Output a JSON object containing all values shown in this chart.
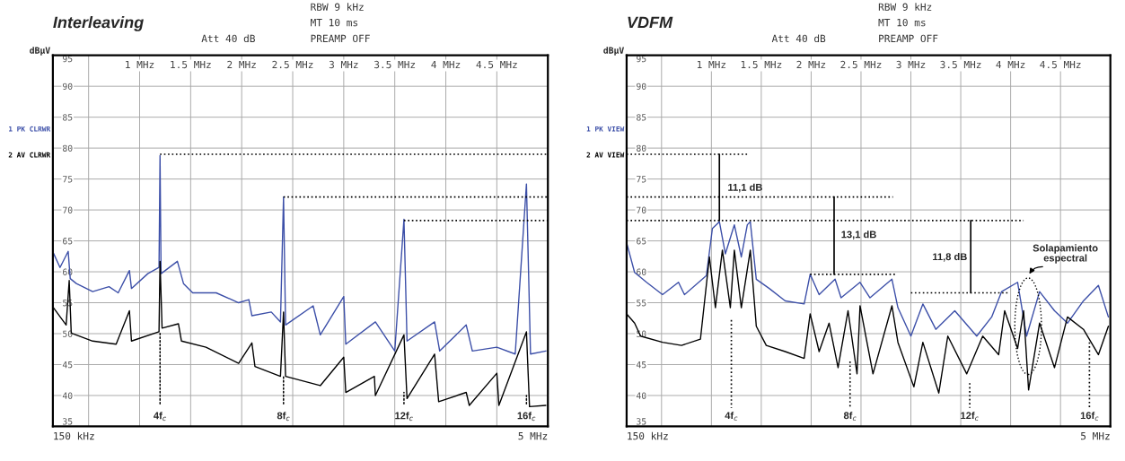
{
  "chart_data": [
    {
      "type": "line",
      "title": "Interleaving",
      "ylabel": "dBµV",
      "xlim": [
        0.15,
        5
      ],
      "xticks": [
        {
          "value": 0.5,
          "label": null
        },
        {
          "value": 1,
          "label": "1 MHz"
        },
        {
          "value": 1.5,
          "label": "1.5 MHz"
        },
        {
          "value": 2,
          "label": "2 MHz"
        },
        {
          "value": 2.5,
          "label": "2.5 MHz"
        },
        {
          "value": 3,
          "label": "3 MHz"
        },
        {
          "value": 3.5,
          "label": "3.5 MHz"
        },
        {
          "value": 4,
          "label": "4 MHz"
        },
        {
          "value": 4.5,
          "label": "4.5 MHz"
        }
      ],
      "ylim": [
        35,
        95
      ],
      "yticks": [
        35,
        40,
        45,
        50,
        55,
        60,
        65,
        70,
        75,
        80,
        85,
        90,
        95
      ],
      "grid": true,
      "legend": "left",
      "series": [
        {
          "name": "1 PK CLRWR",
          "color": "#3c4fa8",
          "line_style": "solid",
          "x": [
            0.156,
            0.22,
            0.3,
            0.32,
            0.38,
            0.54,
            0.7,
            0.79,
            0.9,
            0.92,
            1.08,
            1.19,
            1.2,
            1.21,
            1.37,
            1.43,
            1.52,
            1.75,
            1.97,
            2.07,
            2.1,
            2.29,
            2.38,
            2.41,
            2.43,
            2.7,
            2.77,
            3.0,
            3.02,
            3.31,
            3.5,
            3.59,
            3.62,
            3.89,
            3.94,
            4.2,
            4.26,
            4.5,
            4.68,
            4.79,
            4.83,
            4.98
          ],
          "values": [
            63.0,
            60.7,
            63.3,
            58.9,
            58.1,
            56.8,
            57.6,
            56.6,
            60.2,
            57.3,
            59.7,
            60.7,
            78.8,
            59.7,
            61.7,
            58.1,
            56.6,
            56.6,
            55.0,
            55.5,
            52.9,
            53.5,
            51.9,
            72.1,
            51.4,
            54.5,
            49.8,
            56.0,
            48.3,
            51.9,
            47.2,
            68.5,
            48.8,
            51.9,
            47.2,
            51.4,
            47.2,
            47.8,
            46.7,
            74.2,
            46.7,
            47.2
          ]
        },
        {
          "name": "2 AV CLRWR",
          "color": "#000000",
          "line_style": "solid",
          "x": [
            0.156,
            0.28,
            0.31,
            0.33,
            0.54,
            0.77,
            0.9,
            0.92,
            1.19,
            1.2,
            1.22,
            1.38,
            1.41,
            1.65,
            1.97,
            2.1,
            2.13,
            2.38,
            2.41,
            2.43,
            2.77,
            3.0,
            3.02,
            3.3,
            3.31,
            3.59,
            3.62,
            3.89,
            3.93,
            4.2,
            4.23,
            4.5,
            4.52,
            4.79,
            4.82,
            4.98
          ],
          "values": [
            54.2,
            51.4,
            58.6,
            50.1,
            48.8,
            48.3,
            53.7,
            48.8,
            50.3,
            61.7,
            50.9,
            51.6,
            48.8,
            47.8,
            45.2,
            48.5,
            44.7,
            43.1,
            53.5,
            43.1,
            41.6,
            46.2,
            40.5,
            43.1,
            40.0,
            49.8,
            39.5,
            46.7,
            39.0,
            40.5,
            38.4,
            43.6,
            38.4,
            50.3,
            38.2,
            38.4
          ]
        },
        {
          "color": "#000000",
          "line_style": "dotted",
          "x": [
            1.2,
            5
          ],
          "values": [
            79.0,
            79.0
          ]
        },
        {
          "color": "#000000",
          "line_style": "dotted",
          "x": [
            2.41,
            5
          ],
          "values": [
            72.1,
            72.1
          ]
        },
        {
          "color": "#000000",
          "line_style": "dotted",
          "x": [
            3.59,
            5
          ],
          "values": [
            68.3,
            68.3
          ]
        }
      ],
      "annotations": [
        "Att 40 dB",
        "RBW 9 kHz",
        "MT 10 ms",
        "PREAMP OFF",
        "150 kHz",
        "5 MHz",
        {
          "text": "4f$_{c}$",
          "x": 1.2,
          "y": 50.3
        },
        {
          "text": "8f$_{c}$",
          "x": 2.41,
          "y": 43.1
        },
        {
          "text": "12f$_{c}$",
          "x": 3.59,
          "y": 40.5
        },
        {
          "text": "16f$_{c}$",
          "x": 4.79,
          "y": 40.0
        }
      ]
    },
    {
      "type": "line",
      "title": "VDFM",
      "ylabel": "dBµV",
      "xlim": [
        0.15,
        5
      ],
      "xticks": [
        {
          "value": 0.5,
          "label": null
        },
        {
          "value": 1,
          "label": "1 MHz"
        },
        {
          "value": 1.5,
          "label": "1.5 MHz"
        },
        {
          "value": 2,
          "label": "2 MHz"
        },
        {
          "value": 2.5,
          "label": "2.5 MHz"
        },
        {
          "value": 3,
          "label": "3 MHz"
        },
        {
          "value": 3.5,
          "label": "3.5 MHz"
        },
        {
          "value": 4,
          "label": "4 MHz"
        },
        {
          "value": 4.5,
          "label": "4.5 MHz"
        }
      ],
      "ylim": [
        35,
        95
      ],
      "yticks": [
        35,
        40,
        45,
        50,
        55,
        60,
        65,
        70,
        75,
        80,
        85,
        90,
        95
      ],
      "grid": true,
      "legend": "left",
      "series": [
        {
          "name": "1 PK VIEW",
          "color": "#3c4fa8",
          "line_style": "solid",
          "x": [
            0.15,
            0.23,
            0.35,
            0.51,
            0.67,
            0.73,
            0.95,
            1.01,
            1.08,
            1.14,
            1.23,
            1.3,
            1.36,
            1.39,
            1.45,
            1.58,
            1.74,
            1.93,
            1.99,
            2.08,
            2.24,
            2.3,
            2.49,
            2.59,
            2.81,
            2.87,
            3.0,
            3.12,
            3.25,
            3.44,
            3.66,
            3.81,
            3.91,
            4.07,
            4.16,
            4.29,
            4.44,
            4.57,
            4.73,
            4.88,
            4.98
          ],
          "values": [
            64.7,
            59.9,
            58.3,
            56.3,
            58.3,
            56.3,
            59.4,
            67.0,
            68.1,
            62.9,
            67.6,
            62.4,
            67.6,
            68.1,
            58.8,
            57.3,
            55.3,
            54.8,
            59.6,
            56.3,
            58.8,
            55.8,
            58.3,
            55.8,
            58.8,
            54.2,
            49.6,
            54.8,
            50.7,
            53.7,
            49.6,
            52.7,
            56.8,
            58.3,
            49.6,
            56.8,
            53.7,
            51.7,
            55.3,
            57.8,
            52.7
          ]
        },
        {
          "name": "2 AV VIEW",
          "color": "#000000",
          "line_style": "solid",
          "x": [
            0.15,
            0.23,
            0.29,
            0.51,
            0.7,
            0.89,
            0.98,
            1.04,
            1.11,
            1.19,
            1.23,
            1.3,
            1.39,
            1.45,
            1.55,
            1.74,
            1.93,
            1.99,
            2.08,
            2.18,
            2.27,
            2.37,
            2.46,
            2.49,
            2.62,
            2.81,
            2.87,
            3.03,
            3.12,
            3.28,
            3.37,
            3.56,
            3.72,
            3.88,
            3.94,
            4.07,
            4.13,
            4.18,
            4.29,
            4.44,
            4.57,
            4.73,
            4.88,
            4.98
          ],
          "values": [
            53.2,
            51.7,
            49.6,
            48.6,
            48.1,
            49.1,
            62.4,
            54.2,
            63.5,
            54.2,
            63.5,
            54.2,
            63.5,
            51.2,
            48.1,
            47.1,
            46.0,
            53.2,
            47.1,
            51.7,
            44.5,
            53.7,
            43.5,
            54.5,
            43.5,
            54.5,
            48.6,
            41.4,
            48.6,
            40.4,
            49.6,
            43.5,
            49.6,
            46.6,
            53.7,
            47.6,
            53.7,
            40.9,
            51.7,
            44.5,
            52.7,
            50.7,
            46.6,
            51.2
          ]
        },
        {
          "color": "#000000",
          "line_style": "dotted",
          "x": [
            0.15,
            1.36
          ],
          "values": [
            79.0,
            79.0
          ]
        },
        {
          "color": "#000000",
          "line_style": "dotted",
          "x": [
            0.15,
            2.82
          ],
          "values": [
            72.1,
            72.1
          ]
        },
        {
          "color": "#000000",
          "line_style": "dotted",
          "x": [
            0.15,
            4.13
          ],
          "values": [
            68.3,
            68.3
          ]
        },
        {
          "color": "#000000",
          "line_style": "dotted",
          "x": [
            1.99,
            2.84
          ],
          "values": [
            59.6,
            59.6
          ]
        },
        {
          "color": "#000000",
          "line_style": "dotted",
          "x": [
            3.0,
            3.97
          ],
          "values": [
            56.6,
            56.6
          ]
        },
        {
          "color": "#000000",
          "line_style": "solid",
          "x": [
            1.08,
            1.08
          ],
          "values": [
            79.0,
            68.3
          ]
        },
        {
          "color": "#000000",
          "line_style": "solid",
          "x": [
            2.23,
            2.23
          ],
          "values": [
            72.1,
            59.6
          ]
        },
        {
          "color": "#000000",
          "line_style": "solid",
          "x": [
            3.6,
            3.6
          ],
          "values": [
            68.3,
            56.6
          ]
        },
        {
          "color": "#000000",
          "line_style": "dotted",
          "x": [
            1.2,
            1.2
          ],
          "values": [
            52.2,
            38.0
          ]
        },
        {
          "color": "#000000",
          "line_style": "dotted",
          "x": [
            2.39,
            2.39
          ],
          "values": [
            45.5,
            38.0
          ]
        },
        {
          "color": "#000000",
          "line_style": "dotted",
          "x": [
            3.59,
            3.59
          ],
          "values": [
            42.0,
            38.0
          ]
        },
        {
          "color": "#000000",
          "line_style": "dotted",
          "x": [
            4.79,
            4.79
          ],
          "values": [
            48.6,
            38.0
          ]
        }
      ],
      "annotations": [
        "Att 40 dB",
        "RBW 9 kHz",
        "MT 10 ms",
        "PREAMP OFF",
        "150 kHz",
        "5 MHz",
        "11,1 dB",
        "13,1 dB",
        "11,8 dB",
        "Solapamiento\nespectral",
        "4f$_{c}$",
        "8f$_{c}$",
        "12f$_{c}$",
        "16f$_{c}$"
      ]
    }
  ]
}
